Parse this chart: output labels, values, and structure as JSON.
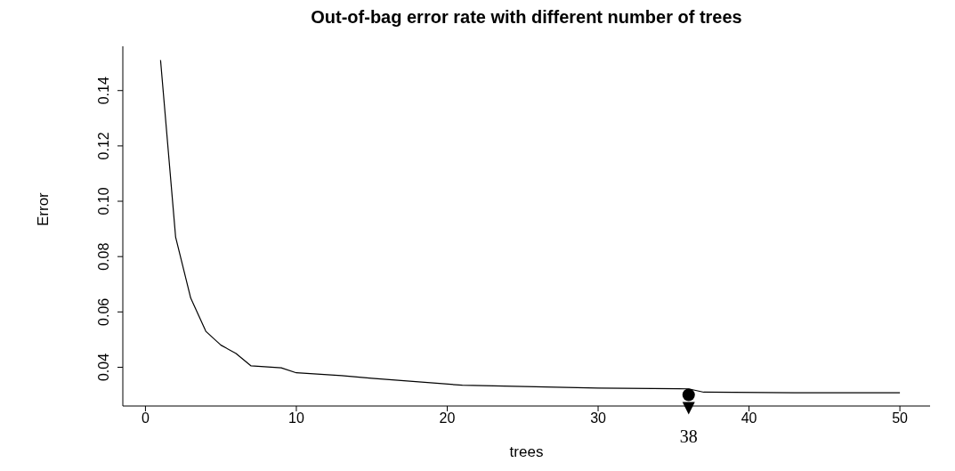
{
  "chart_data": {
    "type": "line",
    "title": "Out-of-bag error rate with different number of trees",
    "xlabel": "trees",
    "ylabel": "Error",
    "x": [
      1,
      2,
      3,
      4,
      5,
      6,
      7,
      9,
      10,
      13,
      15,
      21,
      30,
      36,
      37,
      43,
      50
    ],
    "series": [
      {
        "color": "#000000",
        "values": [
          0.151,
          0.087,
          0.065,
          0.053,
          0.048,
          0.045,
          0.0405,
          0.0398,
          0.038,
          0.037,
          0.036,
          0.0335,
          0.0325,
          0.0322,
          0.031,
          0.0308,
          0.0308
        ]
      }
    ],
    "xlim": [
      -1.5,
      52
    ],
    "xticks": [
      0,
      10,
      20,
      30,
      40,
      50
    ],
    "ylim": [
      0.026,
      0.156
    ],
    "yticks": [
      0.04,
      0.06,
      0.08,
      {
        "value": 0.1,
        "label": "0.10"
      },
      0.12,
      0.14
    ],
    "annotations": [
      {
        "text": "38",
        "x": 36,
        "y": 0.03
      }
    ],
    "grid": false,
    "legend": false,
    "marker": "none",
    "line_style": "solid"
  }
}
